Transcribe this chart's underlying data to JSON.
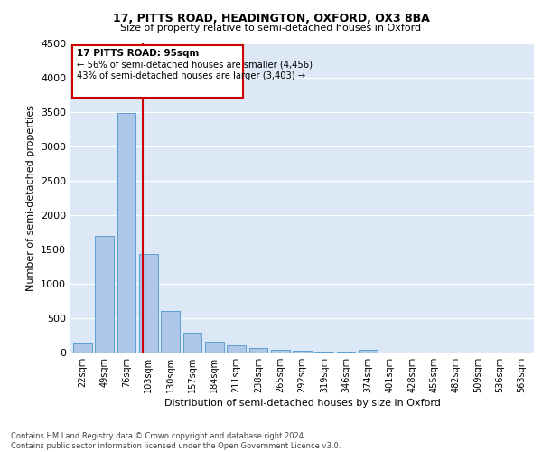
{
  "title1": "17, PITTS ROAD, HEADINGTON, OXFORD, OX3 8BA",
  "title2": "Size of property relative to semi-detached houses in Oxford",
  "xlabel": "Distribution of semi-detached houses by size in Oxford",
  "ylabel": "Number of semi-detached properties",
  "footer": "Contains HM Land Registry data © Crown copyright and database right 2024.\nContains public sector information licensed under the Open Government Licence v3.0.",
  "bar_labels": [
    "22sqm",
    "49sqm",
    "76sqm",
    "103sqm",
    "130sqm",
    "157sqm",
    "184sqm",
    "211sqm",
    "238sqm",
    "265sqm",
    "292sqm",
    "319sqm",
    "346sqm",
    "374sqm",
    "401sqm",
    "428sqm",
    "455sqm",
    "482sqm",
    "509sqm",
    "536sqm",
    "563sqm"
  ],
  "bar_values": [
    140,
    1700,
    3480,
    1430,
    610,
    290,
    160,
    100,
    60,
    35,
    25,
    15,
    10,
    40,
    0,
    0,
    0,
    0,
    0,
    0,
    0
  ],
  "bar_color": "#aec6e8",
  "bar_edge_color": "#5a9fd4",
  "property_label": "17 PITTS ROAD: 95sqm",
  "vline_x_index": 2.72,
  "annotation_text1": "← 56% of semi-detached houses are smaller (4,456)",
  "annotation_text2": "43% of semi-detached houses are larger (3,403) →",
  "vline_color": "#cc0000",
  "box_color": "#cc0000",
  "ylim": [
    0,
    4500
  ],
  "yticks": [
    0,
    500,
    1000,
    1500,
    2000,
    2500,
    3000,
    3500,
    4000,
    4500
  ],
  "plot_bg_color": "#dce8f5",
  "grid_color": "#ffffff"
}
